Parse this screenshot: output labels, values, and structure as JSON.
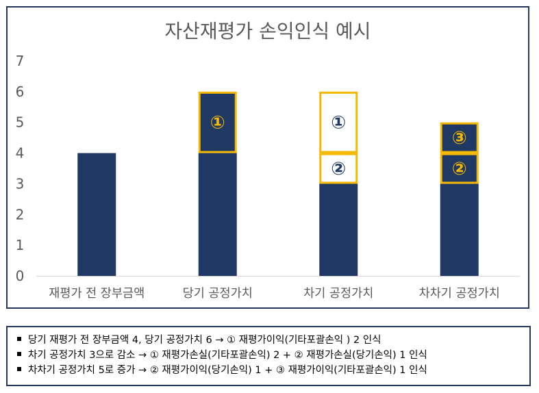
{
  "chart_data": {
    "type": "bar",
    "title": "자산재평가 손익인식 예시",
    "categories": [
      "재평가 전 장부금액",
      "당기 공정가치",
      "차기 공정가치",
      "차차기 공정가치"
    ],
    "ylim": [
      0,
      7
    ],
    "yticks": [
      "0",
      "1",
      "2",
      "3",
      "4",
      "5",
      "6",
      "7"
    ],
    "grid": false,
    "bars": [
      [
        {
          "from": 0,
          "to": 4,
          "style": "navy",
          "label": ""
        }
      ],
      [
        {
          "from": 0,
          "to": 4,
          "style": "navy",
          "label": ""
        },
        {
          "from": 4,
          "to": 6,
          "style": "navy-outlined",
          "label": "①"
        }
      ],
      [
        {
          "from": 0,
          "to": 3,
          "style": "navy",
          "label": ""
        },
        {
          "from": 3,
          "to": 4,
          "style": "white-outlined",
          "label": "②"
        },
        {
          "from": 4,
          "to": 6,
          "style": "white-outlined",
          "label": "①"
        }
      ],
      [
        {
          "from": 0,
          "to": 3,
          "style": "navy",
          "label": ""
        },
        {
          "from": 3,
          "to": 4,
          "style": "navy-outlined",
          "label": "②"
        },
        {
          "from": 4,
          "to": 5,
          "style": "navy-outlined",
          "label": "③"
        }
      ]
    ],
    "colors": {
      "navy": "#1F3864",
      "gold": "#F5B800",
      "axis_text": "#595959",
      "title_text": "#595959"
    }
  },
  "notes": [
    "당기 재평가 전 장부금액 4, 당기 공정가치 6 → ① 재평가이익(기타포괄손익 ) 2 인식",
    "차기 공정가치 3으로 감소 → ① 재평가손실(기타포괄손익) 2 + ② 재평가손실(당기손익) 1 인식",
    "차차기 공정가치 5로 증가 → ② 재평가이익(당기손익) 1 + ③ 재평가이익(기타포괄손익) 1 인식"
  ]
}
